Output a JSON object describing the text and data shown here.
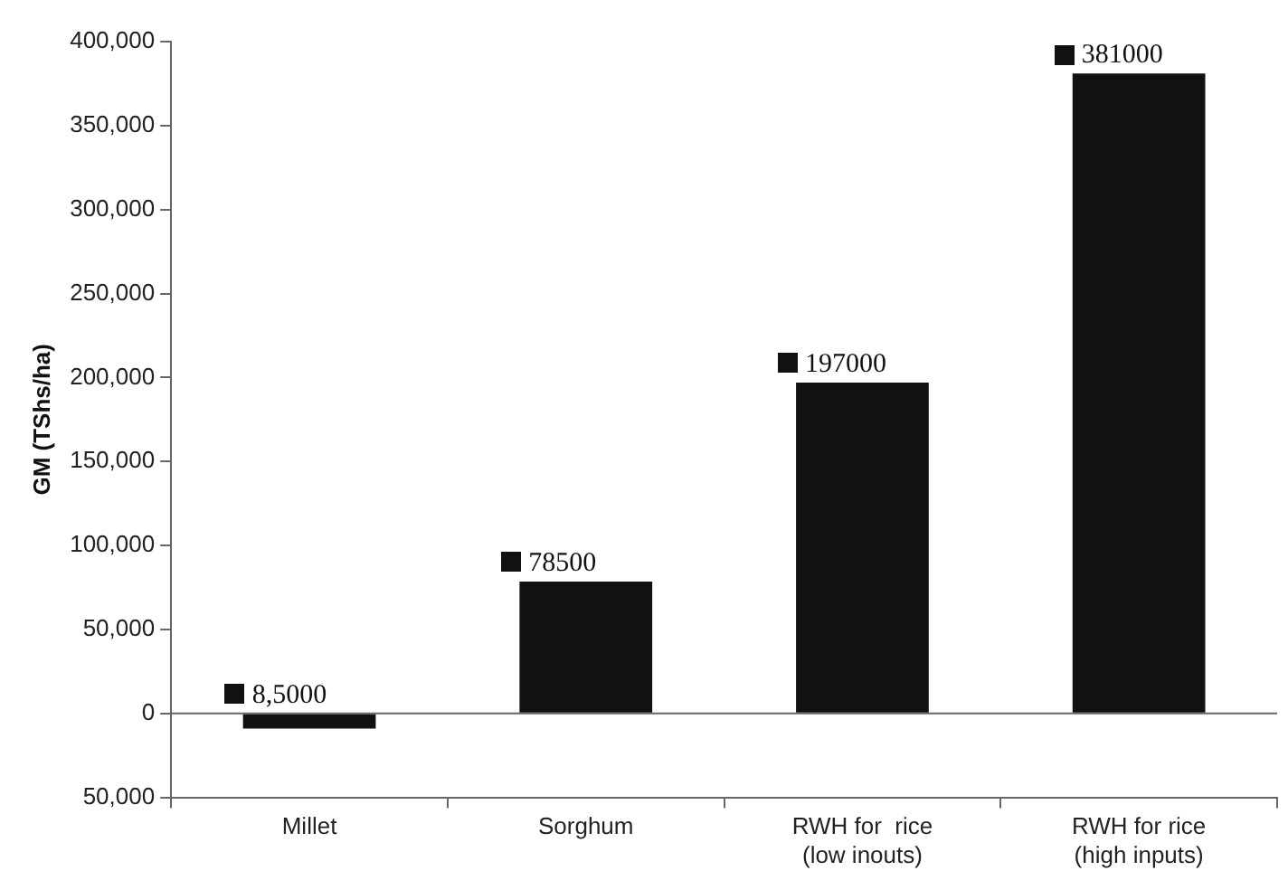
{
  "chart_data": {
    "type": "bar",
    "ylabel": "GM (TShs/ha)",
    "categories": [
      "Millet",
      "Sorghum",
      "RWH for  rice (low inouts)",
      "RWH for rice (high inputs)"
    ],
    "values": [
      -9000,
      78500,
      197000,
      381000
    ],
    "value_labels": [
      "8,5000",
      "78500",
      "197000",
      "381000"
    ],
    "color": "#111111",
    "ylim": [
      -50000,
      400000
    ],
    "yticks": [
      {
        "value": -50000,
        "label": "50,000"
      },
      {
        "value": 0,
        "label": "0"
      },
      {
        "value": 50000,
        "label": "50,000"
      },
      {
        "value": 100000,
        "label": "100,000"
      },
      {
        "value": 150000,
        "label": "150,000"
      },
      {
        "value": 200000,
        "label": "200,000"
      },
      {
        "value": 250000,
        "label": "250,000"
      },
      {
        "value": 300000,
        "label": "300,000"
      },
      {
        "value": 350000,
        "label": "350,000"
      },
      {
        "value": 400000,
        "label": "400,000"
      }
    ],
    "ref_lines": [
      {
        "axis": "y",
        "value": 0,
        "color": "#666666"
      }
    ],
    "legend": false
  }
}
